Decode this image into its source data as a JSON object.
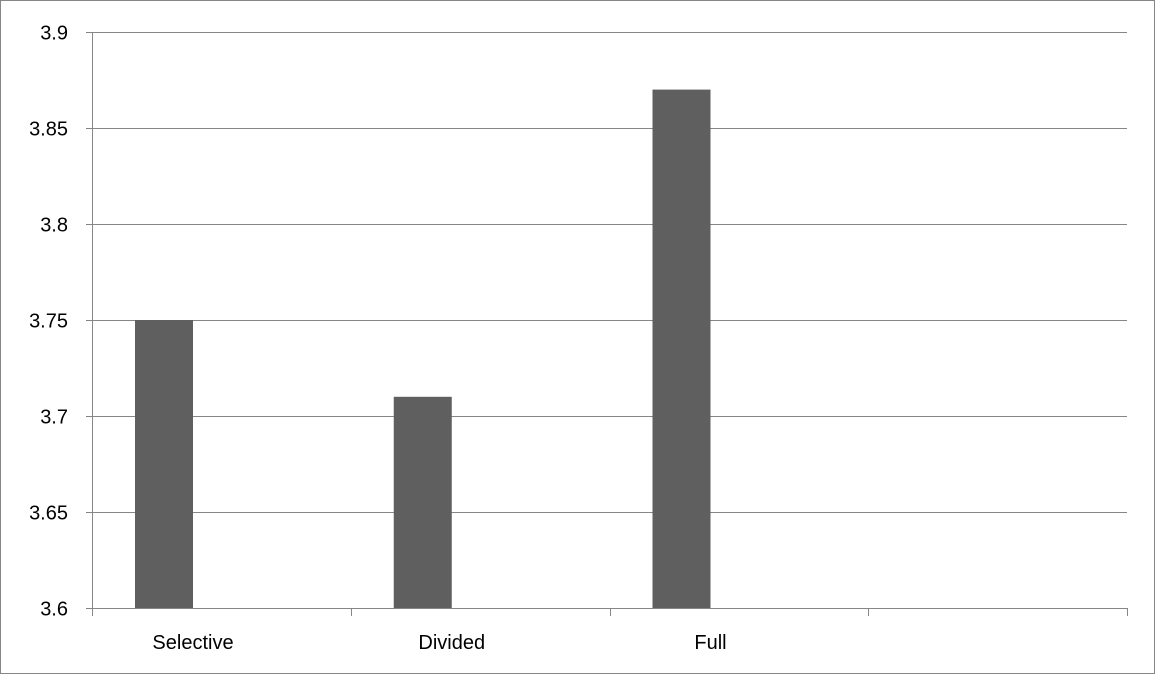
{
  "chart_data": {
    "type": "bar",
    "categories": [
      "Selective",
      "Divided",
      "Full",
      ""
    ],
    "values": [
      3.75,
      3.71,
      3.87,
      null
    ],
    "ylim": [
      3.6,
      3.9
    ],
    "yticks": [
      3.6,
      3.65,
      3.7,
      3.75,
      3.8,
      3.85,
      3.9
    ],
    "ytick_labels": [
      "3.6",
      "3.65",
      "3.7",
      "3.75",
      "3.8",
      "3.85",
      "3.9"
    ],
    "grid": true,
    "legend": "none",
    "colors": {
      "bar": "#5f5f5f",
      "grid": "#868686",
      "axis": "#868686",
      "border": "#868686"
    }
  }
}
